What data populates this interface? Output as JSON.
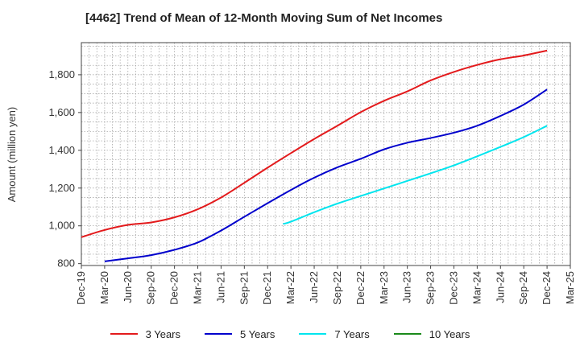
{
  "chart_data": {
    "type": "line",
    "title": "[4462]  Trend of Mean of 12-Month Moving Sum of Net Incomes",
    "xlabel": "",
    "ylabel": "Amount (million yen)",
    "ylim": [
      790,
      1970
    ],
    "yticks": [
      800,
      1000,
      1200,
      1400,
      1600,
      1800
    ],
    "ytick_labels": [
      "800",
      "1,000",
      "1,200",
      "1,400",
      "1,600",
      "1,800"
    ],
    "xticks": [
      "Dec-19",
      "Mar-20",
      "Jun-20",
      "Sep-20",
      "Dec-20",
      "Mar-21",
      "Jun-21",
      "Sep-21",
      "Dec-21",
      "Mar-22",
      "Jun-22",
      "Sep-22",
      "Dec-22",
      "Mar-23",
      "Jun-23",
      "Sep-23",
      "Dec-23",
      "Mar-24",
      "Jun-24",
      "Sep-24",
      "Dec-24",
      "Mar-25"
    ],
    "grid": true,
    "legend_position": "bottom",
    "series": [
      {
        "name": "3 Years",
        "color": "#e31a1c",
        "x": [
          "Dec-19",
          "Mar-20",
          "Jun-20",
          "Sep-20",
          "Dec-20",
          "Mar-21",
          "Jun-21",
          "Sep-21",
          "Dec-21",
          "Mar-22",
          "Jun-22",
          "Sep-22",
          "Dec-22",
          "Mar-23",
          "Jun-23",
          "Sep-23",
          "Dec-23",
          "Mar-24",
          "Jun-24",
          "Sep-24",
          "Dec-24"
        ],
        "values": [
          940,
          978,
          1005,
          1018,
          1045,
          1088,
          1150,
          1228,
          1308,
          1385,
          1460,
          1530,
          1602,
          1662,
          1712,
          1770,
          1815,
          1852,
          1882,
          1902,
          1928
        ]
      },
      {
        "name": "5 Years",
        "color": "#0000cc",
        "x": [
          "Mar-20",
          "Jun-20",
          "Sep-20",
          "Dec-20",
          "Mar-21",
          "Jun-21",
          "Sep-21",
          "Dec-21",
          "Mar-22",
          "Jun-22",
          "Sep-22",
          "Dec-22",
          "Mar-23",
          "Jun-23",
          "Sep-23",
          "Dec-23",
          "Mar-24",
          "Jun-24",
          "Sep-24",
          "Dec-24"
        ],
        "values": [
          812,
          828,
          845,
          873,
          912,
          975,
          1048,
          1120,
          1190,
          1255,
          1310,
          1355,
          1405,
          1440,
          1465,
          1493,
          1530,
          1582,
          1642,
          1722
        ]
      },
      {
        "name": "7 Years",
        "color": "#00e5ee",
        "x": [
          "Feb-22",
          "Mar-22",
          "Jun-22",
          "Sep-22",
          "Dec-22",
          "Mar-23",
          "Jun-23",
          "Sep-23",
          "Dec-23",
          "Mar-24",
          "Jun-24",
          "Sep-24",
          "Dec-24"
        ],
        "values": [
          1010,
          1022,
          1072,
          1118,
          1158,
          1198,
          1238,
          1278,
          1320,
          1368,
          1418,
          1470,
          1530
        ]
      },
      {
        "name": "10 Years",
        "color": "#1a8a1a",
        "x": [],
        "values": []
      }
    ]
  }
}
